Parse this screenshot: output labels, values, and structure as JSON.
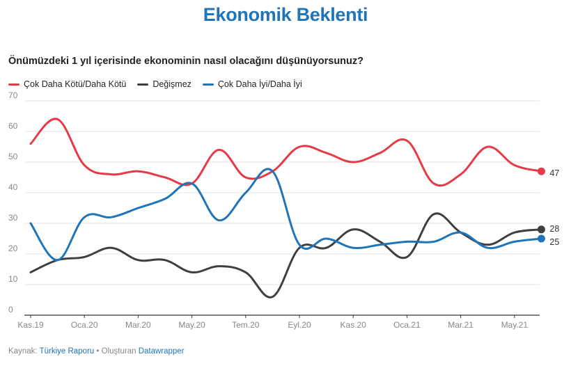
{
  "title": "Ekonomik Beklenti",
  "subtitle": "Önümüzdeki 1 yıl içerisinde ekonominin nasıl olacağını düşünüyorsunuz?",
  "source": {
    "prefix": "Kaynak:",
    "name": "Türkiye Raporu",
    "separator": "•",
    "made_with": "Oluşturan",
    "tool": "Datawrapper"
  },
  "colors": {
    "red": "#e63a46",
    "dark": "#3f3f3f",
    "blue": "#1f74ba"
  },
  "chart_data": {
    "type": "line",
    "x": [
      "2019-11",
      "2019-12",
      "2020-01",
      "2020-02",
      "2020-03",
      "2020-04",
      "2020-05",
      "2020-06",
      "2020-07",
      "2020-08",
      "2020-09",
      "2020-10",
      "2020-11",
      "2020-12",
      "2021-01",
      "2021-02",
      "2021-03",
      "2021-04",
      "2021-05",
      "2021-06"
    ],
    "x_tick_labels": [
      "Kas.19",
      "Oca.20",
      "Mar.20",
      "May.20",
      "Tem.20",
      "Eyl.20",
      "Kas.20",
      "Oca.21",
      "Mar.21",
      "May.21"
    ],
    "y_ticks": [
      0,
      10,
      20,
      30,
      40,
      50,
      60,
      70
    ],
    "ylim": [
      0,
      70
    ],
    "grid": true,
    "legend_position": "top-left",
    "series": [
      {
        "name": "Çok Daha Kötü/Daha Kötü",
        "color": "#e63a46",
        "end_label": "47",
        "values": [
          56,
          64,
          49,
          46,
          47,
          45,
          43,
          54,
          45,
          47,
          55,
          53,
          50,
          53,
          57,
          43,
          46,
          55,
          49,
          47
        ]
      },
      {
        "name": "Değişmez",
        "color": "#3f3f3f",
        "end_label": "28",
        "values": [
          14,
          18,
          19,
          22,
          18,
          18,
          14,
          16,
          14,
          6,
          22,
          22,
          28,
          24,
          19,
          33,
          27,
          23,
          27,
          28
        ]
      },
      {
        "name": "Çok Daha İyi/Daha İyi",
        "color": "#1f74ba",
        "end_label": "25",
        "values": [
          30,
          18,
          32,
          32,
          35,
          38,
          43,
          31,
          40,
          47,
          23,
          25,
          22,
          23,
          24,
          24,
          27,
          22,
          24,
          25
        ]
      }
    ]
  }
}
